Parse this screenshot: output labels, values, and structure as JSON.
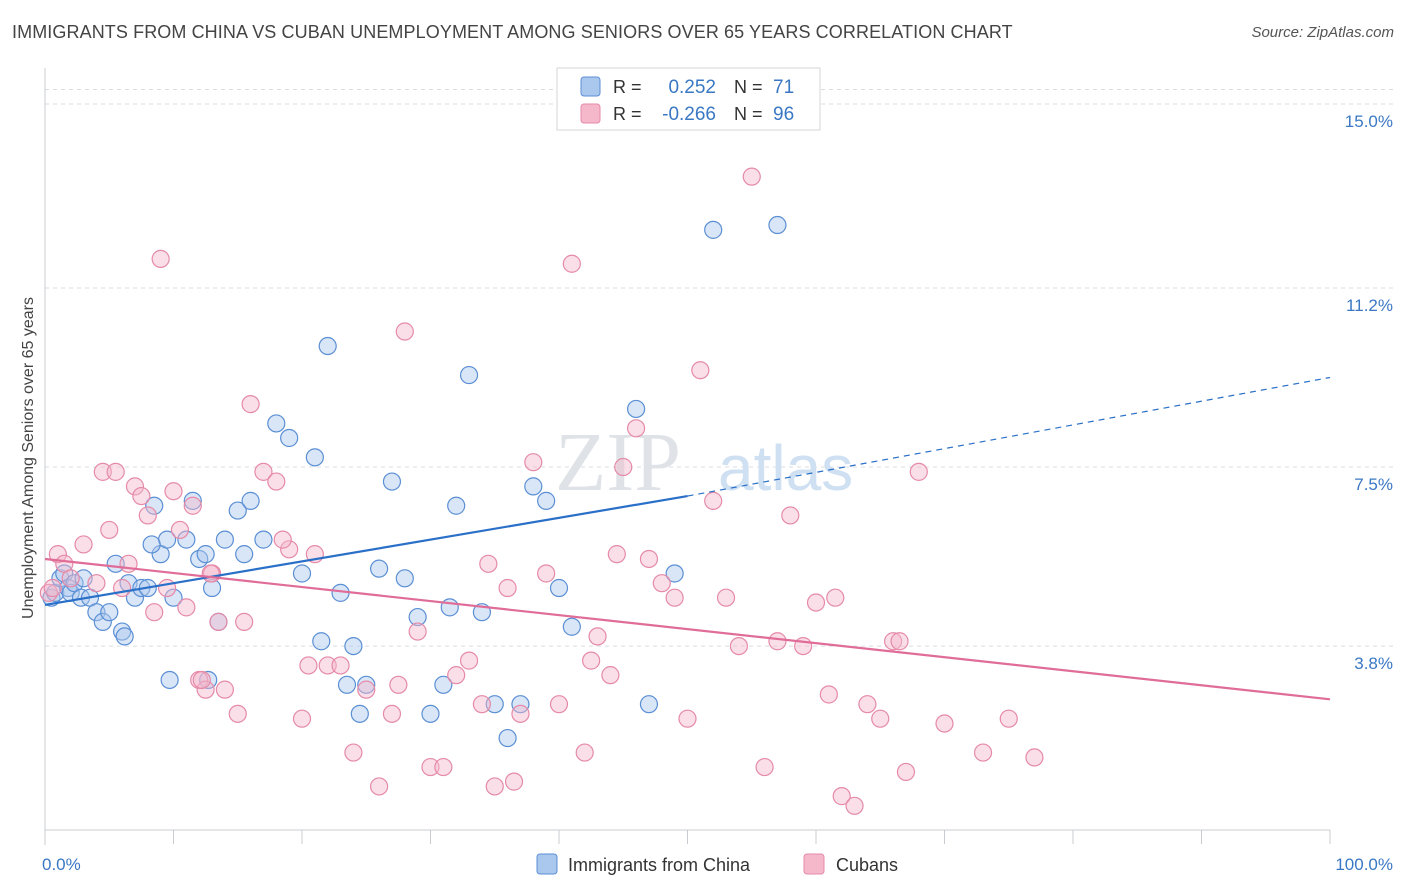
{
  "title": "IMMIGRANTS FROM CHINA VS CUBAN UNEMPLOYMENT AMONG SENIORS OVER 65 YEARS CORRELATION CHART",
  "source": "Source: ZipAtlas.com",
  "watermark": {
    "zip": "ZIP",
    "atlas": "atlas"
  },
  "colors": {
    "china_fill": "#aac8ee",
    "china_stroke": "#5b8fd4",
    "china_line": "#2a6fc8",
    "cuba_fill": "#f5b8cb",
    "cuba_stroke": "#e58aa8",
    "cuba_line": "#e06c98",
    "grid": "#d8dde3",
    "tick_label": "#3a78c4"
  },
  "legend_top": {
    "rows": [
      {
        "r_label": "R =",
        "r_value": "0.252",
        "n_label": "N =",
        "n_value": "71"
      },
      {
        "r_label": "R =",
        "r_value": "-0.266",
        "n_label": "N =",
        "n_value": "96"
      }
    ]
  },
  "legend_bottom": [
    "Immigrants from China",
    "Cubans"
  ],
  "chart_data": {
    "type": "scatter",
    "title": "IMMIGRANTS FROM CHINA VS CUBAN UNEMPLOYMENT AMONG SENIORS OVER 65 YEARS CORRELATION CHART",
    "xlabel": "",
    "ylabel": "Unemployment Among Seniors over 65 years",
    "xlim": [
      0,
      100
    ],
    "ylim": [
      0,
      15.6
    ],
    "x_tick_labels": [
      "0.0%",
      "100.0%"
    ],
    "y_ticks": [
      3.8,
      7.5,
      11.2,
      15.0
    ],
    "y_tick_labels": [
      "3.8%",
      "7.5%",
      "11.2%",
      "15.0%"
    ],
    "grid": "horizontal dashed",
    "legend": "top-center",
    "series": [
      {
        "name": "Immigrants from China",
        "r": 0.252,
        "n": 71,
        "trend": {
          "x0": 0,
          "y0": 4.65,
          "x1": 50,
          "y1": 6.9,
          "dashed_to_x": 100,
          "dashed_to_y": 9.35
        },
        "points": [
          [
            0.5,
            4.8
          ],
          [
            0.8,
            4.9
          ],
          [
            1.2,
            5.2
          ],
          [
            1.5,
            5.3
          ],
          [
            1.8,
            5.0
          ],
          [
            2.0,
            4.9
          ],
          [
            2.3,
            5.1
          ],
          [
            2.8,
            4.8
          ],
          [
            3.0,
            5.2
          ],
          [
            3.5,
            4.8
          ],
          [
            4.0,
            4.5
          ],
          [
            4.5,
            4.3
          ],
          [
            5.0,
            4.5
          ],
          [
            5.5,
            5.5
          ],
          [
            6.0,
            4.1
          ],
          [
            6.5,
            5.1
          ],
          [
            7.0,
            4.8
          ],
          [
            7.5,
            5.0
          ],
          [
            8.0,
            5.0
          ],
          [
            8.5,
            6.7
          ],
          [
            9.0,
            5.7
          ],
          [
            9.5,
            6.0
          ],
          [
            10.0,
            4.8
          ],
          [
            11.0,
            6.0
          ],
          [
            11.5,
            6.8
          ],
          [
            12.0,
            5.6
          ],
          [
            12.5,
            5.7
          ],
          [
            13.0,
            5.0
          ],
          [
            13.5,
            4.3
          ],
          [
            14.0,
            6.0
          ],
          [
            15.0,
            6.6
          ],
          [
            15.5,
            5.7
          ],
          [
            16.0,
            6.8
          ],
          [
            17.0,
            6.0
          ],
          [
            18.0,
            8.4
          ],
          [
            19.0,
            8.1
          ],
          [
            20.0,
            5.3
          ],
          [
            21.0,
            7.7
          ],
          [
            22.0,
            10.0
          ],
          [
            23.0,
            4.9
          ],
          [
            24.0,
            3.8
          ],
          [
            25.0,
            3.0
          ],
          [
            26.0,
            5.4
          ],
          [
            27.0,
            7.2
          ],
          [
            28.0,
            5.2
          ],
          [
            29.0,
            4.4
          ],
          [
            30.0,
            2.4
          ],
          [
            31.0,
            3.0
          ],
          [
            32.0,
            6.7
          ],
          [
            33.0,
            9.4
          ],
          [
            34.0,
            4.5
          ],
          [
            35.0,
            2.6
          ],
          [
            36.0,
            1.9
          ],
          [
            37.0,
            2.6
          ],
          [
            38.0,
            7.1
          ],
          [
            39.0,
            6.8
          ],
          [
            40.0,
            5.0
          ],
          [
            41.0,
            4.2
          ],
          [
            46.0,
            8.7
          ],
          [
            47.0,
            2.6
          ],
          [
            49.0,
            5.3
          ],
          [
            52.0,
            12.4
          ],
          [
            57.0,
            12.5
          ],
          [
            6.2,
            4.0
          ],
          [
            8.3,
            5.9
          ],
          [
            9.7,
            3.1
          ],
          [
            12.7,
            3.1
          ],
          [
            21.5,
            3.9
          ],
          [
            23.5,
            3.0
          ],
          [
            24.5,
            2.4
          ],
          [
            31.5,
            4.6
          ]
        ]
      },
      {
        "name": "Cubans",
        "r": -0.266,
        "n": 96,
        "trend": {
          "x0": 0,
          "y0": 5.6,
          "x1": 100,
          "y1": 2.7
        },
        "points": [
          [
            0.3,
            4.9
          ],
          [
            0.6,
            5.0
          ],
          [
            1.0,
            5.7
          ],
          [
            1.5,
            5.5
          ],
          [
            2.0,
            5.2
          ],
          [
            3.0,
            5.9
          ],
          [
            4.0,
            5.1
          ],
          [
            4.5,
            7.4
          ],
          [
            5.0,
            6.2
          ],
          [
            5.5,
            7.4
          ],
          [
            6.0,
            5.0
          ],
          [
            6.5,
            5.5
          ],
          [
            7.0,
            7.1
          ],
          [
            7.5,
            6.9
          ],
          [
            8.0,
            6.5
          ],
          [
            8.5,
            4.5
          ],
          [
            9.0,
            11.8
          ],
          [
            9.5,
            5.0
          ],
          [
            10.0,
            7.0
          ],
          [
            10.5,
            6.2
          ],
          [
            11.0,
            4.6
          ],
          [
            11.5,
            6.7
          ],
          [
            12.0,
            3.1
          ],
          [
            12.5,
            2.9
          ],
          [
            13.0,
            5.3
          ],
          [
            13.5,
            4.3
          ],
          [
            14.0,
            2.9
          ],
          [
            15.0,
            2.4
          ],
          [
            16.0,
            8.8
          ],
          [
            17.0,
            7.4
          ],
          [
            18.0,
            7.2
          ],
          [
            19.0,
            5.8
          ],
          [
            20.0,
            2.3
          ],
          [
            21.0,
            5.7
          ],
          [
            22.0,
            3.4
          ],
          [
            23.0,
            3.4
          ],
          [
            24.0,
            1.6
          ],
          [
            25.0,
            2.9
          ],
          [
            26.0,
            0.9
          ],
          [
            27.0,
            2.4
          ],
          [
            28.0,
            10.3
          ],
          [
            29.0,
            4.1
          ],
          [
            30.0,
            1.3
          ],
          [
            31.0,
            1.3
          ],
          [
            32.0,
            3.2
          ],
          [
            33.0,
            3.5
          ],
          [
            34.0,
            2.6
          ],
          [
            35.0,
            0.9
          ],
          [
            36.0,
            5.0
          ],
          [
            37.0,
            2.4
          ],
          [
            38.0,
            7.6
          ],
          [
            39.0,
            5.3
          ],
          [
            40.0,
            2.6
          ],
          [
            41.0,
            11.7
          ],
          [
            42.0,
            1.6
          ],
          [
            43.0,
            4.0
          ],
          [
            44.0,
            3.2
          ],
          [
            45.0,
            7.5
          ],
          [
            46.0,
            8.3
          ],
          [
            47.0,
            5.6
          ],
          [
            48.0,
            5.1
          ],
          [
            49.0,
            4.8
          ],
          [
            50.0,
            2.3
          ],
          [
            51.0,
            9.5
          ],
          [
            52.0,
            6.8
          ],
          [
            53.0,
            4.8
          ],
          [
            54.0,
            3.8
          ],
          [
            55.0,
            13.5
          ],
          [
            56.0,
            1.3
          ],
          [
            57.0,
            3.9
          ],
          [
            58.0,
            6.5
          ],
          [
            59.0,
            3.8
          ],
          [
            60.0,
            4.7
          ],
          [
            61.0,
            2.8
          ],
          [
            62.0,
            0.7
          ],
          [
            63.0,
            0.5
          ],
          [
            64.0,
            2.6
          ],
          [
            65.0,
            2.3
          ],
          [
            66.0,
            3.9
          ],
          [
            67.0,
            1.2
          ],
          [
            68.0,
            7.4
          ],
          [
            70.0,
            2.2
          ],
          [
            73.0,
            1.6
          ],
          [
            75.0,
            2.3
          ],
          [
            77.0,
            1.5
          ],
          [
            27.5,
            3.0
          ],
          [
            18.5,
            6.0
          ],
          [
            34.5,
            5.5
          ],
          [
            36.5,
            1.0
          ],
          [
            15.5,
            4.3
          ],
          [
            12.2,
            3.1
          ],
          [
            20.5,
            3.4
          ],
          [
            42.5,
            3.5
          ],
          [
            44.5,
            5.7
          ],
          [
            61.5,
            4.8
          ],
          [
            66.5,
            3.9
          ],
          [
            12.9,
            5.3
          ]
        ]
      }
    ]
  }
}
